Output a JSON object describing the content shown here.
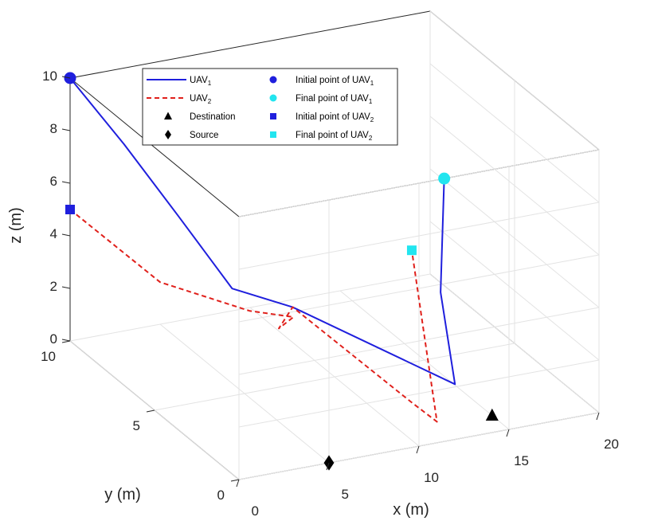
{
  "chart_data": {
    "type": "line3d",
    "title": "",
    "xlabel": "x (m)",
    "ylabel": "y (m)",
    "zlabel": "z (m)",
    "xlim": [
      0,
      20
    ],
    "ylim": [
      0,
      10
    ],
    "zlim": [
      0,
      10
    ],
    "x_ticks": [
      "0",
      "5",
      "10",
      "15",
      "20"
    ],
    "y_ticks": [
      "0",
      "5",
      "10"
    ],
    "z_ticks": [
      "0",
      "2",
      "4",
      "6",
      "8",
      "10"
    ],
    "grid": true,
    "legend_position": "top",
    "series": [
      {
        "name": "UAV",
        "subscript": "1",
        "style": "solid",
        "color": "#1f1fdd",
        "points": [
          [
            0,
            10,
            10
          ],
          [
            3,
            10,
            7.1
          ],
          [
            6,
            10,
            4
          ],
          [
            9,
            10,
            0.85
          ],
          [
            11.8,
            9.4,
            0.1
          ],
          [
            12,
            0,
            2.1
          ],
          [
            11.2,
            0,
            5.7
          ],
          [
            11.4,
            0,
            10
          ]
        ]
      },
      {
        "name": "UAV",
        "subscript": "2",
        "style": "dashed",
        "color": "#e0201b",
        "points": [
          [
            0,
            10,
            5
          ],
          [
            5,
            10,
            1.6
          ],
          [
            9.5,
            9.5,
            0.2
          ],
          [
            11,
            8.5,
            0.3
          ],
          [
            10,
            8.3,
            0.1
          ],
          [
            11.8,
            9.4,
            0.1
          ],
          [
            11.5,
            2,
            0.4
          ],
          [
            11,
            0,
            0.8
          ],
          [
            9.6,
            0,
            7.5
          ]
        ]
      }
    ],
    "markers": [
      {
        "label": "Initial point of UAV",
        "subscript": "1",
        "shape": "circle",
        "color": "#1f1fdd",
        "point": [
          0,
          10,
          10
        ]
      },
      {
        "label": "Final point of UAV",
        "subscript": "1",
        "shape": "circle",
        "color": "#22e5ef",
        "point": [
          11.4,
          0,
          10
        ]
      },
      {
        "label": "Initial point of UAV",
        "subscript": "2",
        "shape": "square",
        "color": "#1f1fdd",
        "point": [
          0,
          10,
          5
        ]
      },
      {
        "label": "Final point of UAV",
        "subscript": "2",
        "shape": "square",
        "color": "#22e5ef",
        "point": [
          9.6,
          0,
          7.5
        ]
      },
      {
        "label": "Destination",
        "subscript": "",
        "shape": "triangle",
        "color": "#000000",
        "point": [
          15,
          1,
          0
        ]
      },
      {
        "label": "Source",
        "subscript": "",
        "shape": "diamond",
        "color": "#000000",
        "point": [
          5,
          0,
          0
        ]
      }
    ]
  }
}
